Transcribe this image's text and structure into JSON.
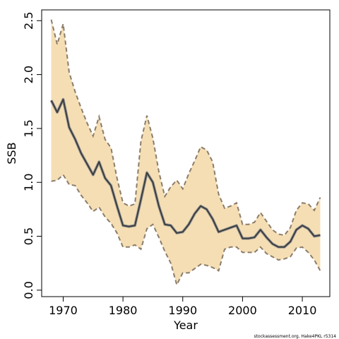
{
  "chart_data": {
    "type": "area",
    "xlabel": "Year",
    "ylabel": "SSB",
    "xlim": [
      1966.4,
      2014.6
    ],
    "ylim": [
      -0.06,
      2.6
    ],
    "x_ticks": [
      1970,
      1980,
      1990,
      2000,
      2010
    ],
    "y_ticks": [
      0.0,
      0.5,
      1.0,
      1.5,
      2.0,
      2.5
    ],
    "y_tick_labels": [
      "0.0",
      "0.5",
      "1.0",
      "1.5",
      "2.0",
      "2.5"
    ],
    "x": [
      1968,
      1969,
      1970,
      1971,
      1972,
      1973,
      1974,
      1975,
      1976,
      1977,
      1978,
      1979,
      1980,
      1981,
      1982,
      1983,
      1984,
      1985,
      1986,
      1987,
      1988,
      1989,
      1990,
      1991,
      1992,
      1993,
      1994,
      1995,
      1996,
      1997,
      1998,
      1999,
      2000,
      2001,
      2002,
      2003,
      2004,
      2005,
      2006,
      2007,
      2008,
      2009,
      2010,
      2011,
      2012,
      2013
    ],
    "series": [
      {
        "role": "estimate",
        "values": [
          1.76,
          1.65,
          1.77,
          1.51,
          1.4,
          1.27,
          1.17,
          1.07,
          1.19,
          1.04,
          0.97,
          0.78,
          0.6,
          0.59,
          0.6,
          0.84,
          1.09,
          1.0,
          0.78,
          0.61,
          0.6,
          0.53,
          0.54,
          0.61,
          0.71,
          0.78,
          0.75,
          0.66,
          0.54,
          0.56,
          0.58,
          0.6,
          0.48,
          0.48,
          0.49,
          0.56,
          0.49,
          0.43,
          0.4,
          0.4,
          0.45,
          0.56,
          0.6,
          0.57,
          0.5,
          0.51
        ]
      },
      {
        "role": "upper",
        "values": [
          2.51,
          2.28,
          2.47,
          2.02,
          1.84,
          1.69,
          1.55,
          1.43,
          1.61,
          1.4,
          1.32,
          1.04,
          0.81,
          0.78,
          0.8,
          1.38,
          1.62,
          1.41,
          1.1,
          0.87,
          0.96,
          1.02,
          0.94,
          1.08,
          1.2,
          1.33,
          1.3,
          1.19,
          0.89,
          0.76,
          0.78,
          0.81,
          0.61,
          0.61,
          0.63,
          0.72,
          0.64,
          0.56,
          0.52,
          0.51,
          0.58,
          0.74,
          0.81,
          0.8,
          0.74,
          0.86
        ]
      },
      {
        "role": "lower",
        "values": [
          1.01,
          1.02,
          1.07,
          0.98,
          0.97,
          0.88,
          0.81,
          0.73,
          0.77,
          0.68,
          0.62,
          0.53,
          0.4,
          0.4,
          0.42,
          0.38,
          0.57,
          0.61,
          0.49,
          0.36,
          0.25,
          0.05,
          0.16,
          0.16,
          0.2,
          0.24,
          0.23,
          0.21,
          0.18,
          0.38,
          0.4,
          0.4,
          0.35,
          0.35,
          0.35,
          0.4,
          0.34,
          0.31,
          0.28,
          0.29,
          0.31,
          0.39,
          0.4,
          0.35,
          0.28,
          0.18
        ]
      }
    ],
    "colors": {
      "band_fill": "#f5deb3",
      "band_edge": "#8b7d6b",
      "line": "#3d3d3d",
      "axis": "#000000"
    },
    "grid": false,
    "legend": "none"
  },
  "footer_text": "stockassessment.org, Hake4PKL r5314"
}
